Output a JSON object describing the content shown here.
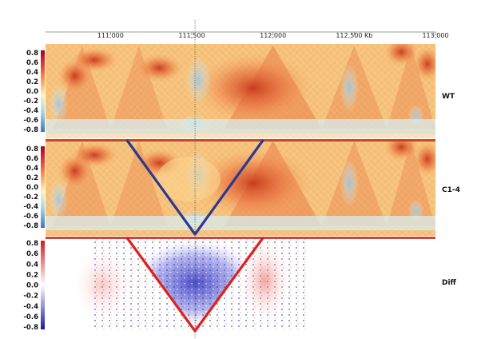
{
  "chart_data": {
    "type": "heatmap",
    "x_axis": {
      "unit": "Kb",
      "ticks": [
        {
          "value": 111000,
          "label": "111,000"
        },
        {
          "value": 111500,
          "label": "111,500"
        },
        {
          "value": 112000,
          "label": "112,000"
        },
        {
          "value": 112500,
          "label": "112,500 Kb"
        },
        {
          "value": 113000,
          "label": "113,000"
        }
      ],
      "range": [
        110600,
        113000
      ]
    },
    "colorbar_ticks": [
      "0.8",
      "0.6",
      "0.4",
      "0.2",
      "0.0",
      "-0.2",
      "-0.4",
      "-0.6",
      "-0.8"
    ],
    "colorbar_range": [
      -0.8,
      0.8
    ],
    "marker_position": 111520,
    "tracks": [
      {
        "name": "WT",
        "colormap": "RdYlBu_r",
        "v_overlay": false
      },
      {
        "name": "C1-4",
        "colormap": "RdYlBu_r",
        "v_overlay": true,
        "v_color": "#2b3a8f",
        "v_apex": 111520,
        "v_left_top": 111100,
        "v_right_top": 111940
      },
      {
        "name": "Diff",
        "colormap": "bwr",
        "v_overlay": true,
        "v_color": "#e0201a",
        "v_apex": 111520,
        "v_left_top": 111100,
        "v_right_top": 111940
      }
    ]
  }
}
